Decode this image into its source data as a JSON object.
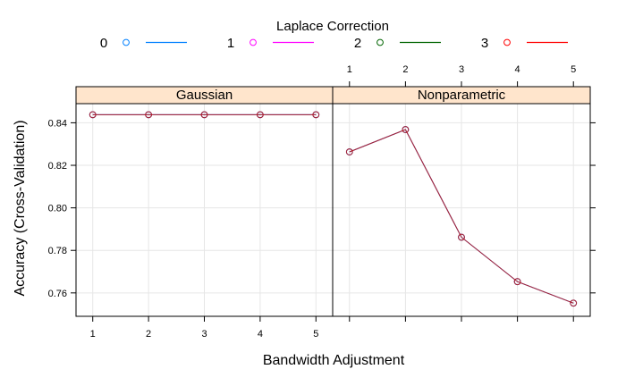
{
  "chart_data": {
    "type": "line",
    "xlabel": "Bandwidth Adjustment",
    "ylabel": "Accuracy (Cross-Validation)",
    "ylim": [
      0.749,
      0.849
    ],
    "xlim": [
      0.7,
      5.3
    ],
    "y_ticks": [
      "0.76",
      "0.78",
      "0.80",
      "0.82",
      "0.84"
    ],
    "x_ticks": [
      "1",
      "2",
      "3",
      "4",
      "5"
    ],
    "grid": true,
    "legend": {
      "title": "Laplace Correction",
      "placement": "top",
      "entries": [
        {
          "label": "0",
          "color": "#0080ff"
        },
        {
          "label": "1",
          "color": "#ff00ff"
        },
        {
          "label": "2",
          "color": "#006400"
        },
        {
          "label": "3",
          "color": "#ff0000"
        }
      ]
    },
    "panels": [
      {
        "strip": "Gaussian",
        "x": [
          1,
          2,
          3,
          4,
          5
        ],
        "series": [
          {
            "name": "0",
            "values": [
              0.8438,
              0.8438,
              0.8438,
              0.8438,
              0.8438
            ]
          },
          {
            "name": "1",
            "values": [
              0.8438,
              0.8438,
              0.8438,
              0.8438,
              0.8438
            ]
          },
          {
            "name": "2",
            "values": [
              0.8438,
              0.8438,
              0.8438,
              0.8438,
              0.8438
            ]
          },
          {
            "name": "3",
            "values": [
              0.8438,
              0.8438,
              0.8438,
              0.8438,
              0.8438
            ]
          }
        ]
      },
      {
        "strip": "Nonparametric",
        "x": [
          1,
          2,
          3,
          4,
          5
        ],
        "series": [
          {
            "name": "0",
            "values": [
              0.8263,
              0.8368,
              0.7862,
              0.7653,
              0.7552
            ]
          },
          {
            "name": "1",
            "values": [
              0.8263,
              0.8368,
              0.7862,
              0.7653,
              0.7552
            ]
          },
          {
            "name": "2",
            "values": [
              0.8263,
              0.8368,
              0.7862,
              0.7653,
              0.7552
            ]
          },
          {
            "name": "3",
            "values": [
              0.8263,
              0.8368,
              0.7862,
              0.7653,
              0.7552
            ]
          }
        ]
      }
    ]
  }
}
